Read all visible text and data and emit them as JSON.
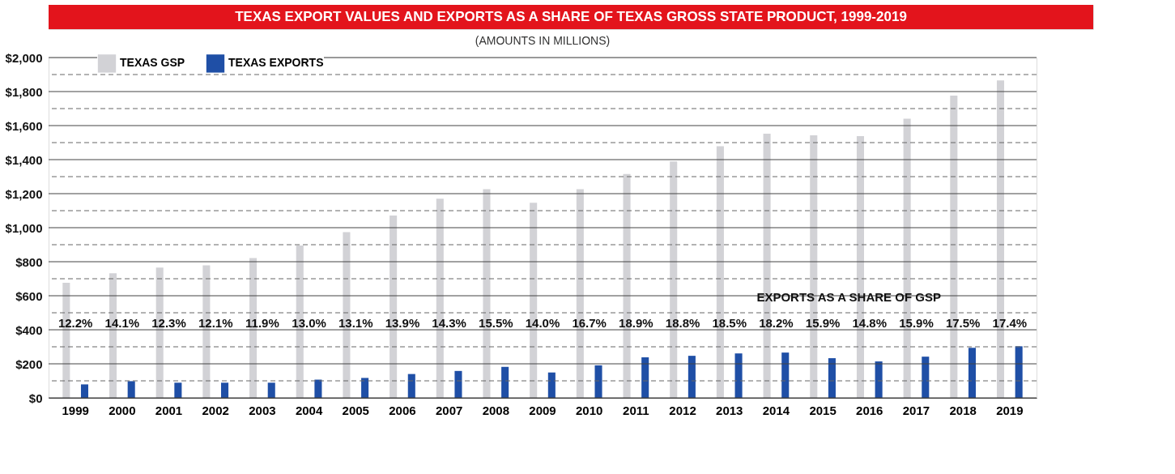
{
  "chart_data": {
    "type": "bar",
    "title": "TEXAS EXPORT VALUES AND EXPORTS AS A SHARE OF TEXAS GROSS STATE PRODUCT, 1999-2019",
    "subtitle": "(AMOUNTS IN MILLIONS)",
    "categories": [
      "1999",
      "2000",
      "2001",
      "2002",
      "2003",
      "2004",
      "2005",
      "2006",
      "2007",
      "2008",
      "2009",
      "2010",
      "2011",
      "2012",
      "2013",
      "2014",
      "2015",
      "2016",
      "2017",
      "2018",
      "2019"
    ],
    "series": [
      {
        "name": "TEXAS GSP",
        "color": "#d2d2d6",
        "values": [
          676,
          732,
          765,
          779,
          821,
          895,
          974,
          1072,
          1170,
          1226,
          1147,
          1226,
          1315,
          1389,
          1478,
          1552,
          1543,
          1538,
          1641,
          1776,
          1865
        ]
      },
      {
        "name": "TEXAS EXPORTS",
        "color": "#1f4fa6",
        "values": [
          79,
          98,
          89,
          89,
          89,
          107,
          117,
          140,
          158,
          182,
          149,
          191,
          238,
          247,
          261,
          266,
          233,
          214,
          242,
          294,
          303
        ]
      }
    ],
    "ylim": [
      0,
      2000
    ],
    "yticks": [
      {
        "value": 0,
        "label": "$0"
      },
      {
        "value": 100,
        "label": null
      },
      {
        "value": 200,
        "label": "$200"
      },
      {
        "value": 300,
        "label": null
      },
      {
        "value": 400,
        "label": "$400"
      },
      {
        "value": 500,
        "label": null
      },
      {
        "value": 600,
        "label": "$600"
      },
      {
        "value": 700,
        "label": null
      },
      {
        "value": 800,
        "label": "$800"
      },
      {
        "value": 900,
        "label": null
      },
      {
        "value": 1000,
        "label": "$1,000"
      },
      {
        "value": 1100,
        "label": null
      },
      {
        "value": 1200,
        "label": "$1,200"
      },
      {
        "value": 1300,
        "label": null
      },
      {
        "value": 1400,
        "label": "$1,400"
      },
      {
        "value": 1500,
        "label": null
      },
      {
        "value": 1600,
        "label": "$1,600"
      },
      {
        "value": 1700,
        "label": null
      },
      {
        "value": 1800,
        "label": "$1,800"
      },
      {
        "value": 1900,
        "label": null
      },
      {
        "value": 2000,
        "label": "$2,000"
      }
    ],
    "grid": "y",
    "legend": "top left",
    "annotations": [
      "EXPORTS AS A SHARE OF GSP",
      "12.2%",
      "14.1%",
      "12.3%",
      "12.1%",
      "11.9%",
      "13.0%",
      "13.1%",
      "13.9%",
      "14.3%",
      "15.5%",
      "14.0%",
      "16.7%",
      "18.9%",
      "18.8%",
      "18.5%",
      "18.2%",
      "15.9%",
      "14.8%",
      "15.9%",
      "17.5%",
      "17.4%"
    ]
  }
}
